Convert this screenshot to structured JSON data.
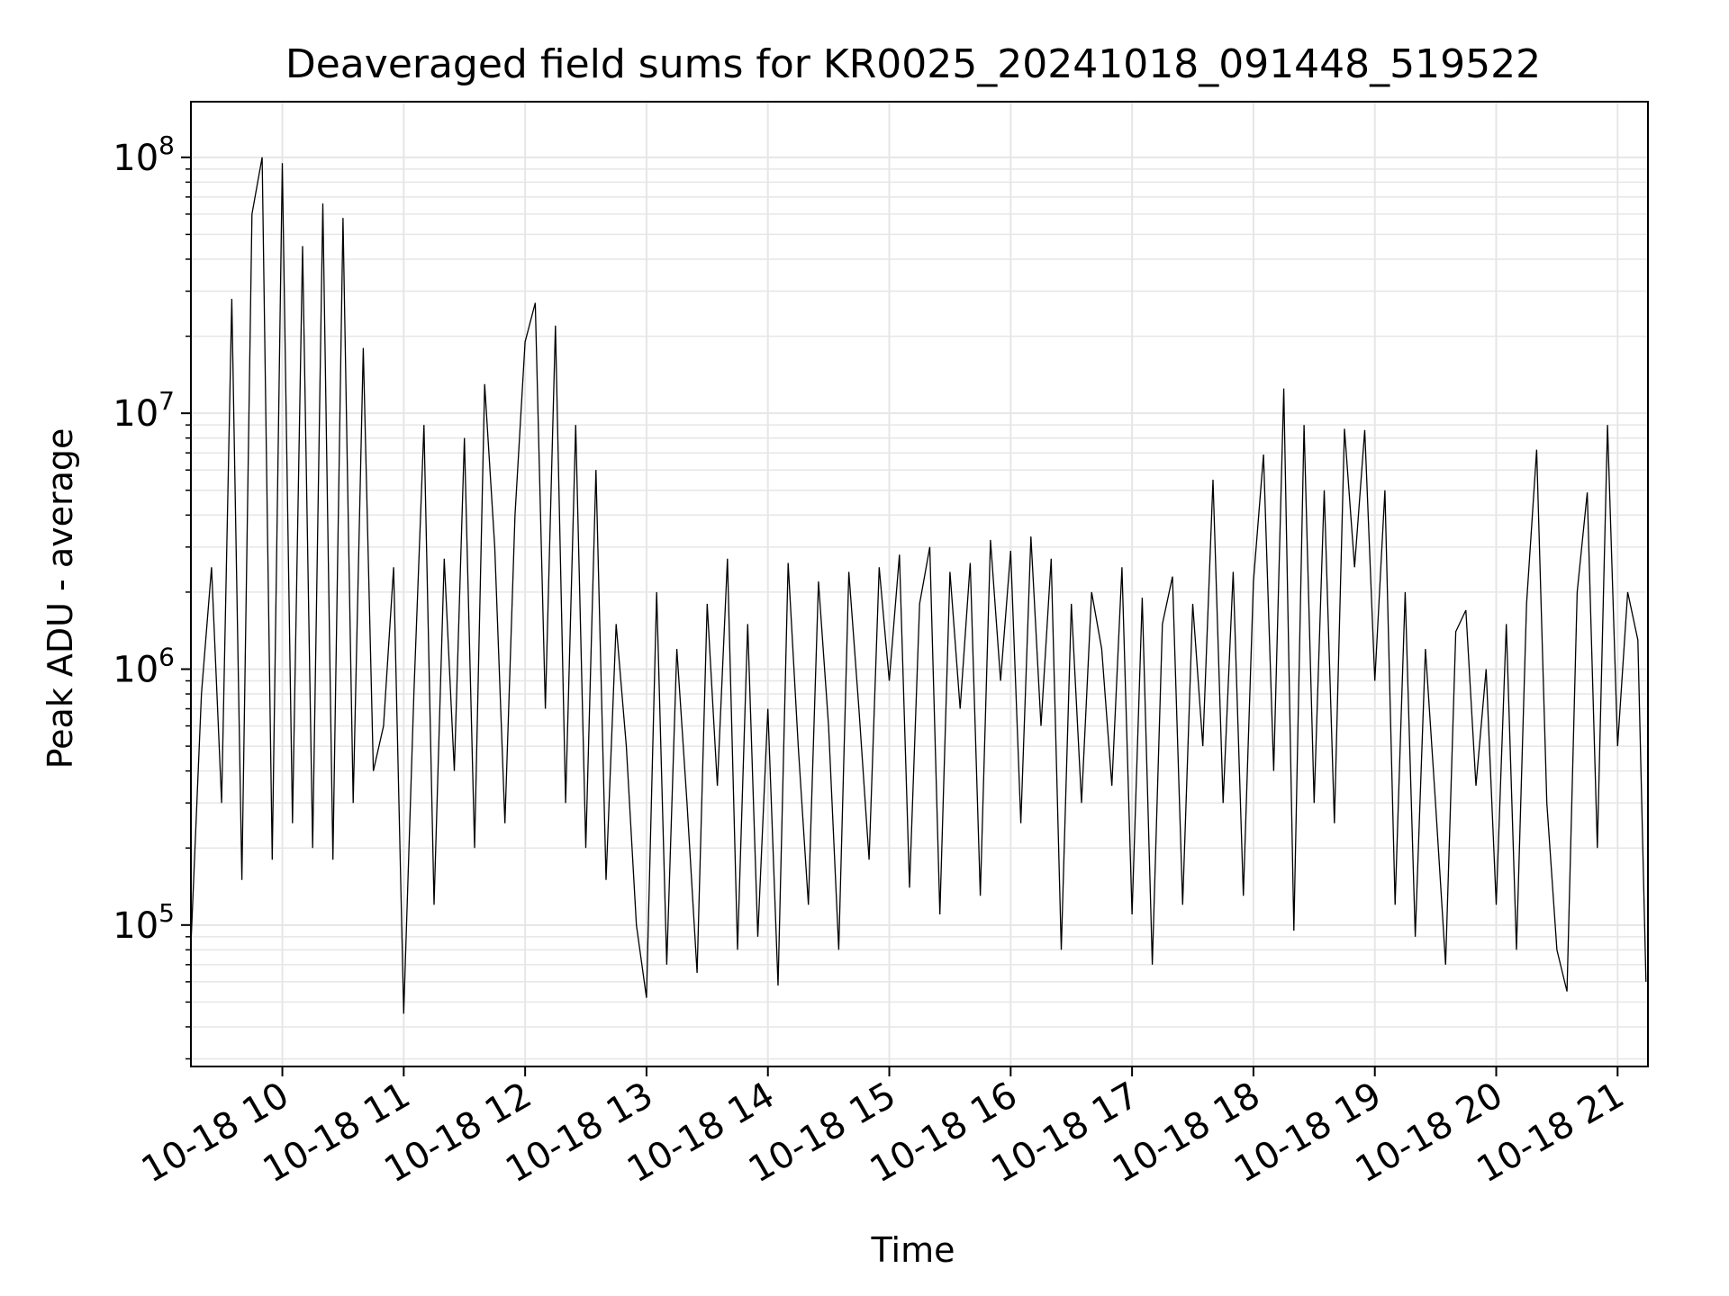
{
  "chart_data": {
    "type": "line",
    "title": "Deaveraged field sums for KR0025_20241018_091448_519522",
    "xlabel": "Time",
    "ylabel": "Peak ADU - average",
    "yscale": "log",
    "ylim": [
      28000,
      165000000
    ],
    "xlim": [
      "2024-10-18 09:14:48",
      "2024-10-18 21:15:00"
    ],
    "grid": true,
    "line_color": "#000000",
    "grid_color": "#e6e6e6",
    "x_ticks": [
      {
        "t": "2024-10-18 10:00",
        "label": "10-18 10"
      },
      {
        "t": "2024-10-18 11:00",
        "label": "10-18 11"
      },
      {
        "t": "2024-10-18 12:00",
        "label": "10-18 12"
      },
      {
        "t": "2024-10-18 13:00",
        "label": "10-18 13"
      },
      {
        "t": "2024-10-18 14:00",
        "label": "10-18 14"
      },
      {
        "t": "2024-10-18 15:00",
        "label": "10-18 15"
      },
      {
        "t": "2024-10-18 16:00",
        "label": "10-18 16"
      },
      {
        "t": "2024-10-18 17:00",
        "label": "10-18 17"
      },
      {
        "t": "2024-10-18 18:00",
        "label": "10-18 18"
      },
      {
        "t": "2024-10-18 19:00",
        "label": "10-18 19"
      },
      {
        "t": "2024-10-18 20:00",
        "label": "10-18 20"
      },
      {
        "t": "2024-10-18 21:00",
        "label": "10-18 21"
      }
    ],
    "y_ticks": [
      {
        "value": 100000,
        "base": "10",
        "exp": "5"
      },
      {
        "value": 1000000,
        "base": "10",
        "exp": "6"
      },
      {
        "value": 10000000,
        "base": "10",
        "exp": "7"
      },
      {
        "value": 100000000,
        "base": "10",
        "exp": "8"
      }
    ],
    "series": [
      {
        "x": [
          "2024-10-18 09:15",
          "2024-10-18 09:20",
          "2024-10-18 09:25",
          "2024-10-18 09:30",
          "2024-10-18 09:35",
          "2024-10-18 09:40",
          "2024-10-18 09:45",
          "2024-10-18 09:50",
          "2024-10-18 09:55",
          "2024-10-18 10:00",
          "2024-10-18 10:05",
          "2024-10-18 10:10",
          "2024-10-18 10:15",
          "2024-10-18 10:20",
          "2024-10-18 10:25",
          "2024-10-18 10:30",
          "2024-10-18 10:35",
          "2024-10-18 10:40",
          "2024-10-18 10:45",
          "2024-10-18 10:50",
          "2024-10-18 10:55",
          "2024-10-18 11:00",
          "2024-10-18 11:05",
          "2024-10-18 11:10",
          "2024-10-18 11:15",
          "2024-10-18 11:20",
          "2024-10-18 11:25",
          "2024-10-18 11:30",
          "2024-10-18 11:35",
          "2024-10-18 11:40",
          "2024-10-18 11:45",
          "2024-10-18 11:50",
          "2024-10-18 11:55",
          "2024-10-18 12:00",
          "2024-10-18 12:05",
          "2024-10-18 12:10",
          "2024-10-18 12:15",
          "2024-10-18 12:20",
          "2024-10-18 12:25",
          "2024-10-18 12:30",
          "2024-10-18 12:35",
          "2024-10-18 12:40",
          "2024-10-18 12:45",
          "2024-10-18 12:50",
          "2024-10-18 12:55",
          "2024-10-18 13:00",
          "2024-10-18 13:05",
          "2024-10-18 13:10",
          "2024-10-18 13:15",
          "2024-10-18 13:20",
          "2024-10-18 13:25",
          "2024-10-18 13:30",
          "2024-10-18 13:35",
          "2024-10-18 13:40",
          "2024-10-18 13:45",
          "2024-10-18 13:50",
          "2024-10-18 13:55",
          "2024-10-18 14:00",
          "2024-10-18 14:05",
          "2024-10-18 14:10",
          "2024-10-18 14:15",
          "2024-10-18 14:20",
          "2024-10-18 14:25",
          "2024-10-18 14:30",
          "2024-10-18 14:35",
          "2024-10-18 14:40",
          "2024-10-18 14:45",
          "2024-10-18 14:50",
          "2024-10-18 14:55",
          "2024-10-18 15:00",
          "2024-10-18 15:05",
          "2024-10-18 15:10",
          "2024-10-18 15:15",
          "2024-10-18 15:20",
          "2024-10-18 15:25",
          "2024-10-18 15:30",
          "2024-10-18 15:35",
          "2024-10-18 15:40",
          "2024-10-18 15:45",
          "2024-10-18 15:50",
          "2024-10-18 15:55",
          "2024-10-18 16:00",
          "2024-10-18 16:05",
          "2024-10-18 16:10",
          "2024-10-18 16:15",
          "2024-10-18 16:20",
          "2024-10-18 16:25",
          "2024-10-18 16:30",
          "2024-10-18 16:35",
          "2024-10-18 16:40",
          "2024-10-18 16:45",
          "2024-10-18 16:50",
          "2024-10-18 16:55",
          "2024-10-18 17:00",
          "2024-10-18 17:05",
          "2024-10-18 17:10",
          "2024-10-18 17:15",
          "2024-10-18 17:20",
          "2024-10-18 17:25",
          "2024-10-18 17:30",
          "2024-10-18 17:35",
          "2024-10-18 17:40",
          "2024-10-18 17:45",
          "2024-10-18 17:50",
          "2024-10-18 17:55",
          "2024-10-18 18:00",
          "2024-10-18 18:05",
          "2024-10-18 18:10",
          "2024-10-18 18:15",
          "2024-10-18 18:20",
          "2024-10-18 18:25",
          "2024-10-18 18:30",
          "2024-10-18 18:35",
          "2024-10-18 18:40",
          "2024-10-18 18:45",
          "2024-10-18 18:50",
          "2024-10-18 18:55",
          "2024-10-18 19:00",
          "2024-10-18 19:05",
          "2024-10-18 19:10",
          "2024-10-18 19:15",
          "2024-10-18 19:20",
          "2024-10-18 19:25",
          "2024-10-18 19:30",
          "2024-10-18 19:35",
          "2024-10-18 19:40",
          "2024-10-18 19:45",
          "2024-10-18 19:50",
          "2024-10-18 19:55",
          "2024-10-18 20:00",
          "2024-10-18 20:05",
          "2024-10-18 20:10",
          "2024-10-18 20:15",
          "2024-10-18 20:20",
          "2024-10-18 20:25",
          "2024-10-18 20:30",
          "2024-10-18 20:35",
          "2024-10-18 20:40",
          "2024-10-18 20:45",
          "2024-10-18 20:50",
          "2024-10-18 20:55",
          "2024-10-18 21:00",
          "2024-10-18 21:05",
          "2024-10-18 21:10",
          "2024-10-18 21:14"
        ],
        "y": [
          90000,
          800000,
          2500000,
          300000,
          28000000,
          150000,
          60000000,
          100000000,
          180000,
          95000000,
          250000,
          45000000,
          200000,
          66000000,
          180000,
          58000000,
          300000,
          18000000,
          400000,
          600000,
          2500000,
          45000,
          800000,
          9000000,
          120000,
          2700000,
          400000,
          8000000,
          200000,
          13000000,
          3000000,
          250000,
          4000000,
          19000000,
          27000000,
          700000,
          22000000,
          300000,
          9000000,
          200000,
          6000000,
          150000,
          1500000,
          500000,
          100000,
          52000,
          2000000,
          70000,
          1200000,
          300000,
          65000,
          1800000,
          350000,
          2700000,
          80000,
          1500000,
          90000,
          700000,
          58000,
          2600000,
          500000,
          120000,
          2200000,
          600000,
          80000,
          2400000,
          700000,
          180000,
          2500000,
          900000,
          2800000,
          140000,
          1800000,
          3000000,
          110000,
          2400000,
          700000,
          2600000,
          130000,
          3200000,
          900000,
          2900000,
          250000,
          3300000,
          600000,
          2700000,
          80000,
          1800000,
          300000,
          2000000,
          1200000,
          350000,
          2500000,
          110000,
          1900000,
          70000,
          1500000,
          2300000,
          120000,
          1800000,
          500000,
          5500000,
          300000,
          2400000,
          130000,
          2200000,
          6900000,
          400000,
          12500000,
          95000,
          9000000,
          300000,
          5000000,
          250000,
          8700000,
          2500000,
          8600000,
          900000,
          5000000,
          120000,
          2000000,
          90000,
          1200000,
          300000,
          70000,
          1400000,
          1700000,
          350000,
          1000000,
          120000,
          1500000,
          80000,
          1800000,
          7200000,
          300000,
          80000,
          55000,
          2000000,
          4900000,
          200000,
          9000000,
          500000,
          2000000,
          1300000,
          60000
        ]
      }
    ]
  }
}
